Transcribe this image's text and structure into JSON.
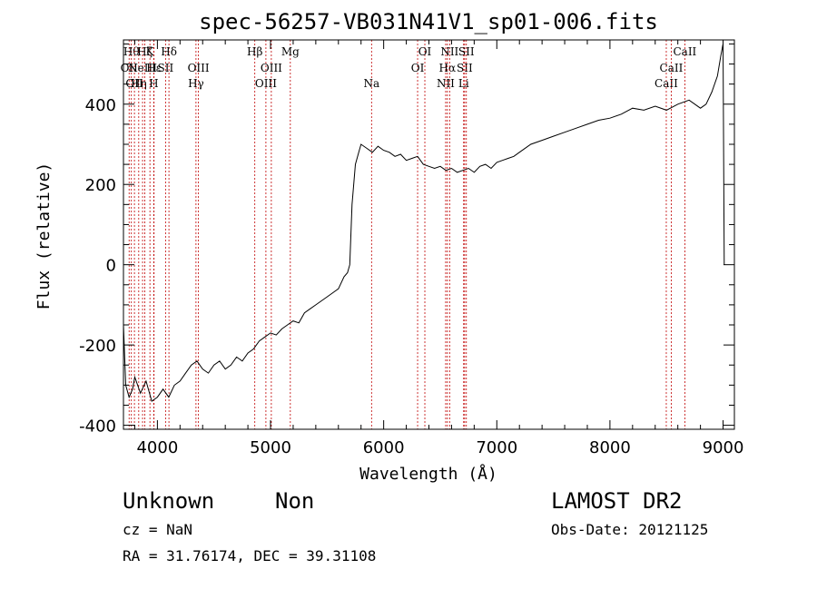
{
  "chart_data": {
    "type": "line",
    "title": "spec-56257-VB031N41V1_sp01-006.fits",
    "xlabel": "Wavelength (Å)",
    "ylabel": "Flux (relative)",
    "xlim": [
      3700,
      9100
    ],
    "ylim": [
      -410,
      560
    ],
    "xticks": [
      4000,
      5000,
      6000,
      7000,
      8000,
      9000
    ],
    "yticks": [
      -400,
      -200,
      0,
      200,
      400
    ],
    "grid": false,
    "series": [
      {
        "x": [
          3700,
          3720,
          3750,
          3780,
          3800,
          3850,
          3900,
          3950,
          4000,
          4050,
          4100,
          4150,
          4200,
          4250,
          4300,
          4350,
          4400,
          4450,
          4500,
          4550,
          4600,
          4650,
          4700,
          4750,
          4800,
          4850,
          4900,
          4950,
          5000,
          5050,
          5100,
          5150,
          5200,
          5250,
          5300,
          5350,
          5400,
          5450,
          5500,
          5550,
          5600,
          5650,
          5680,
          5700,
          5720,
          5750,
          5780,
          5800,
          5850,
          5900,
          5950,
          6000,
          6050,
          6100,
          6150,
          6200,
          6250,
          6300,
          6350,
          6400,
          6450,
          6500,
          6550,
          6600,
          6650,
          6700,
          6750,
          6800,
          6850,
          6900,
          6950,
          7000,
          7050,
          7100,
          7150,
          7200,
          7300,
          7400,
          7500,
          7600,
          7700,
          7800,
          7900,
          8000,
          8100,
          8200,
          8300,
          8400,
          8500,
          8600,
          8700,
          8800,
          8850,
          8900,
          8950,
          8980,
          9000,
          9010
        ],
        "y": [
          -150,
          -300,
          -330,
          -310,
          -280,
          -320,
          -290,
          -340,
          -330,
          -310,
          -330,
          -300,
          -290,
          -270,
          -250,
          -240,
          -260,
          -270,
          -250,
          -240,
          -260,
          -250,
          -230,
          -240,
          -220,
          -210,
          -190,
          -180,
          -170,
          -175,
          -160,
          -150,
          -140,
          -145,
          -120,
          -110,
          -100,
          -90,
          -80,
          -70,
          -60,
          -30,
          -20,
          0,
          150,
          250,
          280,
          300,
          290,
          280,
          295,
          285,
          280,
          270,
          275,
          260,
          265,
          270,
          250,
          245,
          240,
          245,
          235,
          240,
          230,
          235,
          240,
          230,
          245,
          250,
          240,
          255,
          260,
          265,
          270,
          280,
          300,
          310,
          320,
          330,
          340,
          350,
          360,
          365,
          375,
          390,
          385,
          395,
          385,
          400,
          410,
          390,
          400,
          430,
          470,
          520,
          550,
          0
        ]
      }
    ],
    "line_markers": [
      {
        "w": 3750,
        "label": "OII",
        "row": 1
      },
      {
        "w": 3770,
        "label": "Hθ",
        "row": 0
      },
      {
        "w": 3797,
        "label": "OII",
        "row": 2
      },
      {
        "w": 3835,
        "label": "Hη",
        "row": 2
      },
      {
        "w": 3869,
        "label": "NeIII",
        "row": 1
      },
      {
        "w": 3889,
        "label": "Hζ",
        "row": 0
      },
      {
        "w": 3934,
        "label": "K",
        "row": 0
      },
      {
        "w": 3968,
        "label": "H",
        "row": 2
      },
      {
        "w": 3970,
        "label": "Hε",
        "row": 1
      },
      {
        "w": 4072,
        "label": "SII",
        "row": 1
      },
      {
        "w": 4102,
        "label": "Hδ",
        "row": 0
      },
      {
        "w": 4341,
        "label": "Hγ",
        "row": 2
      },
      {
        "w": 4363,
        "label": "OIII",
        "row": 1
      },
      {
        "w": 4861,
        "label": "Hβ",
        "row": 0
      },
      {
        "w": 4959,
        "label": "OIII",
        "row": 2
      },
      {
        "w": 5007,
        "label": "OIII",
        "row": 1
      },
      {
        "w": 5175,
        "label": "Mg",
        "row": 0
      },
      {
        "w": 5893,
        "label": "Na",
        "row": 2
      },
      {
        "w": 6300,
        "label": "OI",
        "row": 1
      },
      {
        "w": 6364,
        "label": "OI",
        "row": 0
      },
      {
        "w": 6548,
        "label": "NII",
        "row": 2
      },
      {
        "w": 6563,
        "label": "Hα",
        "row": 1
      },
      {
        "w": 6583,
        "label": "NII",
        "row": 0
      },
      {
        "w": 6707,
        "label": "Li",
        "row": 2
      },
      {
        "w": 6716,
        "label": "SII",
        "row": 1
      },
      {
        "w": 6731,
        "label": "SII",
        "row": 0
      },
      {
        "w": 8498,
        "label": "CaII",
        "row": 2
      },
      {
        "w": 8542,
        "label": "CaII",
        "row": 1
      },
      {
        "w": 8662,
        "label": "CaII",
        "row": 0
      }
    ]
  },
  "info": {
    "classification": "Unknown",
    "subclass": "Non",
    "cz": "cz = NaN",
    "radec": "RA =  31.76174, DEC =  39.31108",
    "survey": "LAMOST DR2",
    "obsdate": "Obs-Date: 20121125"
  }
}
